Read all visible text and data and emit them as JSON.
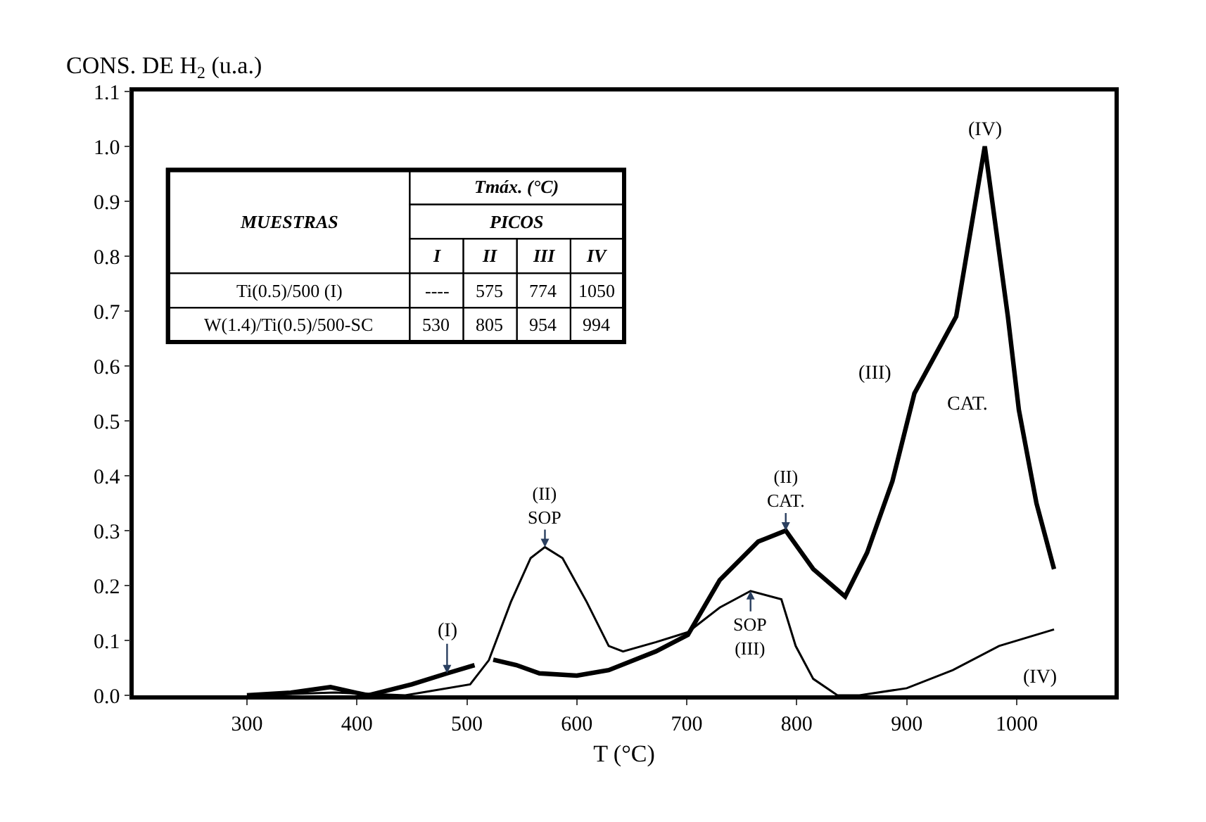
{
  "chart_data": [
    {
      "type": "line",
      "ylabel": "CONS. DE H$_{2}$ (u.a.)",
      "xlabel": "T (°C)",
      "xlim": [
        197,
        1089
      ],
      "ylim": [
        0,
        1.1
      ],
      "xticks": [
        300,
        400,
        500,
        600,
        700,
        800,
        900,
        1000
      ],
      "yticks": [
        {
          "value": 0,
          "label": "0.0"
        },
        0.1,
        0.2,
        0.3,
        0.4,
        0.5,
        0.6,
        0.7,
        0.8,
        0.9,
        {
          "value": 1,
          "label": "1.0"
        },
        1.1
      ],
      "marker": "none",
      "line_style": "solid",
      "series": [
        {
          "color": "#000000",
          "x": [
            300,
            340,
            376,
            410,
            450,
            482,
            507,
            null,
            524,
            545,
            566,
            600,
            629,
            672,
            701,
            730,
            765,
            790,
            815,
            844,
            864,
            887,
            907,
            945,
            971,
            992,
            1002,
            1018,
            1034
          ],
          "values": [
            0,
            0.005,
            0.015,
            0.0,
            0.02,
            0.04,
            0.055,
            null,
            0.065,
            0.055,
            0.04,
            0.036,
            0.046,
            0.08,
            0.11,
            0.21,
            0.28,
            0.3,
            0.23,
            0.18,
            0.26,
            0.39,
            0.55,
            0.69,
            1.0,
            0.69,
            0.52,
            0.35,
            0.23
          ]
        },
        {
          "color": "#000000",
          "x": [
            300,
            380,
            444,
            503,
            520,
            540,
            558,
            571,
            587,
            609,
            629,
            642,
            672,
            701,
            730,
            758,
            786,
            799,
            815,
            837,
            857,
            900,
            942,
            984,
            1034
          ],
          "values": [
            0,
            0.005,
            0,
            0.02,
            0.064,
            0.17,
            0.25,
            0.27,
            0.25,
            0.17,
            0.09,
            0.08,
            0.097,
            0.115,
            0.16,
            0.19,
            0.175,
            0.09,
            0.03,
            0.0,
            0.0,
            0.013,
            0.046,
            0.09,
            0.12
          ]
        }
      ],
      "annotations": [
        {
          "text": "(I)",
          "x": 482,
          "y": 0.04
        },
        {
          "text": "(II)\nSOP",
          "x": 571,
          "y": 0.27
        },
        {
          "text": "(II)\nCAT.",
          "x": 790,
          "y": 0.3
        },
        {
          "text": "SOP\n(III)",
          "x": 758,
          "y": 0.19
        },
        {
          "text": "(III)",
          "x": 907,
          "y": 0.55
        },
        {
          "text": "CAT.",
          "x": 907,
          "y": 0.55
        },
        {
          "text": "(IV)",
          "x": 971,
          "y": 1.0
        },
        {
          "text": "(IV)",
          "x": 1034,
          "y": 0.12
        }
      ]
    },
    {
      "type": "heatmap",
      "title": "Tmáx. (°C)",
      "xlabel": "PICOS",
      "ylabel": "MUESTRAS",
      "categories": [
        "I",
        "II",
        "III",
        "IV"
      ],
      "y_categories": [
        "Ti(0.5)/500 (I)",
        "W(1.4)/Ti(0.5)/500-SC"
      ],
      "cells": [
        [
          null,
          575,
          774,
          1050
        ],
        [
          530,
          805,
          954,
          994
        ]
      ],
      "cell_labels": [
        [
          "----",
          "575",
          "774",
          "1050"
        ],
        [
          "530",
          "805",
          "954",
          "994"
        ]
      ]
    }
  ]
}
